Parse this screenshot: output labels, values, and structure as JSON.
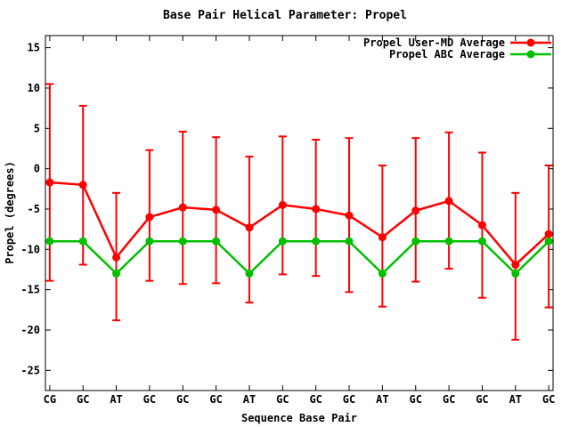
{
  "chart_data": {
    "type": "line",
    "title": "Base Pair Helical Parameter: Propel",
    "xlabel": "Sequence Base Pair",
    "ylabel": "Propel (degrees)",
    "grid": false,
    "legend_position": "top-right-inside",
    "background_color": "#ffffff",
    "text_color": "#000000",
    "border_color": "#000000",
    "categories": [
      "CG",
      "GC",
      "AT",
      "GC",
      "GC",
      "GC",
      "AT",
      "GC",
      "GC",
      "GC",
      "AT",
      "GC",
      "GC",
      "GC",
      "AT",
      "GC"
    ],
    "yticks": [
      15,
      10,
      5,
      0,
      -5,
      -10,
      -15,
      -20,
      -25
    ],
    "ylim": [
      -27.5,
      16.5
    ],
    "series": [
      {
        "name": "Propel User-MD Average",
        "color": "#ff0000",
        "marker": "filled-circle",
        "has_error_bars": true,
        "values": [
          -1.7,
          -2.0,
          -11.0,
          -6.0,
          -4.8,
          -5.1,
          -7.3,
          -4.5,
          -5.0,
          -5.8,
          -8.5,
          -5.2,
          -4.0,
          -7.0,
          -11.9,
          -8.1
        ],
        "err_high": [
          10.5,
          7.8,
          -3.0,
          2.3,
          4.6,
          3.9,
          1.5,
          4.0,
          3.6,
          3.8,
          0.4,
          3.8,
          4.5,
          2.0,
          -3.0,
          0.4
        ],
        "err_low": [
          -13.9,
          -11.9,
          -18.8,
          -13.9,
          -14.3,
          -14.2,
          -16.6,
          -13.1,
          -13.3,
          -15.3,
          -17.1,
          -14.0,
          -12.4,
          -16.0,
          -21.2,
          -17.2
        ]
      },
      {
        "name": "Propel ABC Average",
        "color": "#00c000",
        "marker": "filled-circle",
        "has_error_bars": false,
        "values": [
          -9.0,
          -9.0,
          -13.0,
          -9.0,
          -9.0,
          -9.0,
          -13.0,
          -9.0,
          -9.0,
          -9.0,
          -13.0,
          -9.0,
          -9.0,
          -9.0,
          -13.0,
          -9.0
        ]
      }
    ]
  }
}
